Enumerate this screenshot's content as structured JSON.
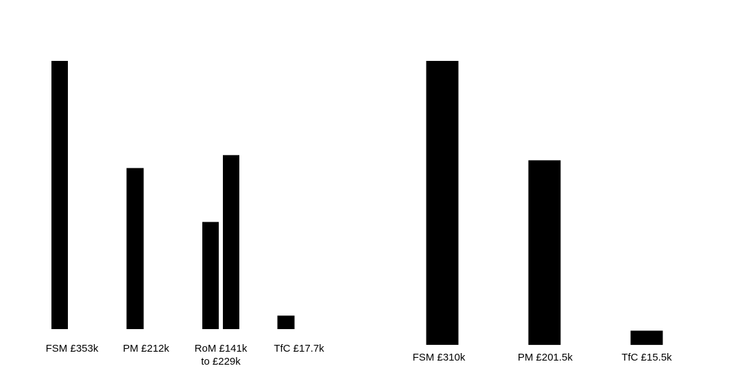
{
  "chart_data": [
    {
      "type": "bar",
      "categories": [
        "FSM £353k",
        "PM £212k",
        "RoM £141k to £229k",
        "TfC £17.7k"
      ],
      "category_label_lines": [
        [
          "FSM £353k"
        ],
        [
          "PM £212k"
        ],
        [
          "RoM £141k",
          "to £229k"
        ],
        [
          "TfC £17.7k"
        ]
      ],
      "series": [
        {
          "values": [
            353,
            212,
            141,
            17.7
          ]
        },
        {
          "values": [
            null,
            null,
            229,
            null
          ]
        }
      ],
      "units": "£k",
      "ylim": [
        0,
        353
      ],
      "grid": false,
      "legend": "none",
      "bar_color": "#000000"
    },
    {
      "type": "bar",
      "categories": [
        "FSM £310k",
        "PM £201.5k",
        "TfC £15.5k"
      ],
      "category_label_lines": [
        [
          "FSM £310k"
        ],
        [
          "PM £201.5k"
        ],
        [
          "TfC £15.5k"
        ]
      ],
      "series": [
        {
          "values": [
            310,
            201.5,
            15.5
          ]
        }
      ],
      "units": "£k",
      "ylim": [
        0,
        310
      ],
      "grid": false,
      "legend": "none",
      "bar_color": "#000000"
    }
  ]
}
